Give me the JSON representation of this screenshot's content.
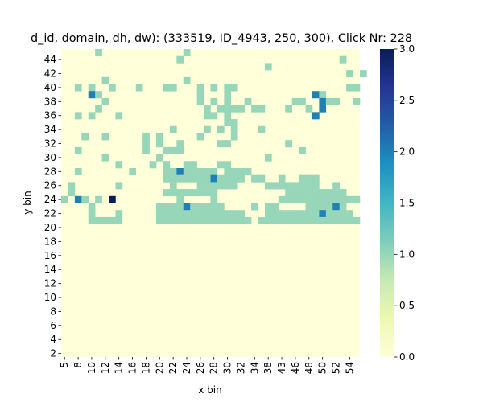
{
  "chart_data": {
    "type": "heatmap",
    "title": "d_id, domain, dh, dw): (333519, ID_4943, 250, 300), Click Nr: 228",
    "xlabel": "x bin",
    "ylabel": "y bin",
    "x_tick_labels": [
      "5",
      "8",
      "10",
      "12",
      "14",
      "16",
      "18",
      "20",
      "22",
      "24",
      "26",
      "28",
      "30",
      "32",
      "34",
      "38",
      "43",
      "46",
      "48",
      "50",
      "52",
      "54"
    ],
    "x_tick_columns": [
      0,
      2,
      4,
      6,
      8,
      10,
      12,
      14,
      16,
      18,
      20,
      22,
      24,
      26,
      28,
      30,
      32,
      34,
      36,
      38,
      40,
      42
    ],
    "y_tick_labels": [
      "2",
      "4",
      "6",
      "8",
      "10",
      "12",
      "14",
      "16",
      "18",
      "20",
      "22",
      "24",
      "26",
      "28",
      "30",
      "32",
      "34",
      "36",
      "38",
      "40",
      "42",
      "44"
    ],
    "y_tick_rows": [
      43,
      41,
      39,
      37,
      35,
      33,
      31,
      29,
      27,
      25,
      23,
      21,
      19,
      17,
      15,
      13,
      11,
      9,
      7,
      5,
      3,
      1
    ],
    "n_cols": 44,
    "n_rows": 44,
    "colorbar": {
      "min": 0.0,
      "max": 3.0,
      "ticks": [
        "0.0",
        "0.5",
        "1.0",
        "1.5",
        "2.0",
        "2.5",
        "3.0"
      ]
    },
    "colormap": "YlGnBu",
    "nonzero_cells": [
      [
        5,
        0,
        1
      ],
      [
        18,
        0,
        1
      ],
      [
        17,
        1,
        1
      ],
      [
        41,
        1,
        1
      ],
      [
        30,
        2,
        1
      ],
      [
        42,
        3,
        1
      ],
      [
        44,
        3,
        1
      ],
      [
        6,
        4,
        1
      ],
      [
        18,
        4,
        1
      ],
      [
        2,
        5,
        1
      ],
      [
        4,
        5,
        1
      ],
      [
        7,
        5,
        1
      ],
      [
        11,
        5,
        1
      ],
      [
        15,
        5,
        1
      ],
      [
        16,
        5,
        1
      ],
      [
        20,
        5,
        1
      ],
      [
        22,
        5,
        1
      ],
      [
        24,
        5,
        1
      ],
      [
        25,
        5,
        1
      ],
      [
        42,
        5,
        1
      ],
      [
        43,
        5,
        1
      ],
      [
        4,
        6,
        2
      ],
      [
        5,
        6,
        1
      ],
      [
        20,
        6,
        1
      ],
      [
        24,
        6,
        1
      ],
      [
        37,
        6,
        2
      ],
      [
        38,
        6,
        1
      ],
      [
        6,
        7,
        1
      ],
      [
        20,
        7,
        1
      ],
      [
        22,
        7,
        1
      ],
      [
        24,
        7,
        1
      ],
      [
        27,
        7,
        1
      ],
      [
        34,
        7,
        1
      ],
      [
        35,
        7,
        1
      ],
      [
        38,
        7,
        2
      ],
      [
        39,
        7,
        1
      ],
      [
        40,
        7,
        1
      ],
      [
        43,
        7,
        1
      ],
      [
        5,
        8,
        1
      ],
      [
        21,
        8,
        1
      ],
      [
        23,
        8,
        1
      ],
      [
        24,
        8,
        1
      ],
      [
        25,
        8,
        1
      ],
      [
        26,
        8,
        1
      ],
      [
        28,
        8,
        1
      ],
      [
        29,
        8,
        1
      ],
      [
        33,
        8,
        1
      ],
      [
        36,
        8,
        1
      ],
      [
        38,
        8,
        2
      ],
      [
        2,
        9,
        1
      ],
      [
        4,
        9,
        1
      ],
      [
        8,
        9,
        1
      ],
      [
        21,
        9,
        1
      ],
      [
        22,
        9,
        1
      ],
      [
        24,
        9,
        1
      ],
      [
        37,
        9,
        2
      ],
      [
        24,
        10,
        1
      ],
      [
        25,
        10,
        1
      ],
      [
        16,
        11,
        1
      ],
      [
        21,
        11,
        1
      ],
      [
        23,
        11,
        1
      ],
      [
        25,
        11,
        1
      ],
      [
        29,
        11,
        1
      ],
      [
        3,
        12,
        1
      ],
      [
        6,
        12,
        1
      ],
      [
        12,
        12,
        1
      ],
      [
        14,
        12,
        1
      ],
      [
        20,
        12,
        1
      ],
      [
        25,
        12,
        1
      ],
      [
        12,
        13,
        1
      ],
      [
        14,
        13,
        1
      ],
      [
        17,
        13,
        1
      ],
      [
        23,
        13,
        1
      ],
      [
        24,
        13,
        1
      ],
      [
        33,
        13,
        1
      ],
      [
        2,
        14,
        1
      ],
      [
        12,
        14,
        1
      ],
      [
        15,
        14,
        1
      ],
      [
        16,
        14,
        1
      ],
      [
        17,
        14,
        1
      ],
      [
        35,
        14,
        1
      ],
      [
        6,
        15,
        1
      ],
      [
        14,
        15,
        1
      ],
      [
        30,
        15,
        1
      ],
      [
        8,
        16,
        1
      ],
      [
        13,
        16,
        1
      ],
      [
        15,
        16,
        1
      ],
      [
        18,
        16,
        1
      ],
      [
        19,
        16,
        1
      ],
      [
        23,
        16,
        1
      ],
      [
        24,
        16,
        1
      ],
      [
        2,
        17,
        1
      ],
      [
        10,
        17,
        1
      ],
      [
        15,
        17,
        1
      ],
      [
        16,
        17,
        1
      ],
      [
        17,
        17,
        2
      ],
      [
        18,
        17,
        1
      ],
      [
        19,
        17,
        1
      ],
      [
        20,
        17,
        1
      ],
      [
        21,
        17,
        1
      ],
      [
        22,
        17,
        1
      ],
      [
        24,
        17,
        1
      ],
      [
        25,
        17,
        1
      ],
      [
        26,
        17,
        1
      ],
      [
        27,
        17,
        1
      ],
      [
        15,
        18,
        1
      ],
      [
        16,
        18,
        1
      ],
      [
        17,
        18,
        1
      ],
      [
        18,
        18,
        1
      ],
      [
        19,
        18,
        1
      ],
      [
        20,
        18,
        1
      ],
      [
        21,
        18,
        1
      ],
      [
        22,
        18,
        2
      ],
      [
        23,
        18,
        1
      ],
      [
        24,
        18,
        1
      ],
      [
        25,
        18,
        1
      ],
      [
        26,
        18,
        1
      ],
      [
        28,
        18,
        1
      ],
      [
        29,
        18,
        1
      ],
      [
        32,
        18,
        1
      ],
      [
        35,
        18,
        1
      ],
      [
        36,
        18,
        1
      ],
      [
        37,
        18,
        1
      ],
      [
        1,
        19,
        1
      ],
      [
        8,
        19,
        1
      ],
      [
        16,
        19,
        1
      ],
      [
        20,
        19,
        1
      ],
      [
        21,
        19,
        1
      ],
      [
        22,
        19,
        1
      ],
      [
        23,
        19,
        1
      ],
      [
        24,
        19,
        1
      ],
      [
        25,
        19,
        1
      ],
      [
        30,
        19,
        1
      ],
      [
        31,
        19,
        1
      ],
      [
        32,
        19,
        1
      ],
      [
        33,
        19,
        1
      ],
      [
        34,
        19,
        1
      ],
      [
        35,
        19,
        1
      ],
      [
        36,
        19,
        1
      ],
      [
        37,
        19,
        1
      ],
      [
        40,
        19,
        1
      ],
      [
        1,
        20,
        1
      ],
      [
        15,
        20,
        1
      ],
      [
        16,
        20,
        1
      ],
      [
        17,
        20,
        1
      ],
      [
        18,
        20,
        1
      ],
      [
        19,
        20,
        1
      ],
      [
        20,
        20,
        1
      ],
      [
        21,
        20,
        1
      ],
      [
        22,
        20,
        1
      ],
      [
        33,
        20,
        1
      ],
      [
        34,
        20,
        1
      ],
      [
        35,
        20,
        1
      ],
      [
        36,
        20,
        1
      ],
      [
        37,
        20,
        1
      ],
      [
        38,
        20,
        1
      ],
      [
        39,
        20,
        1
      ],
      [
        40,
        20,
        1
      ],
      [
        41,
        20,
        1
      ],
      [
        0,
        21,
        1
      ],
      [
        2,
        21,
        2
      ],
      [
        3,
        21,
        1
      ],
      [
        5,
        21,
        1
      ],
      [
        7,
        21,
        3
      ],
      [
        17,
        21,
        1
      ],
      [
        22,
        21,
        1
      ],
      [
        32,
        21,
        1
      ],
      [
        33,
        21,
        1
      ],
      [
        34,
        21,
        1
      ],
      [
        35,
        21,
        1
      ],
      [
        36,
        21,
        1
      ],
      [
        37,
        21,
        1
      ],
      [
        38,
        21,
        1
      ],
      [
        39,
        21,
        1
      ],
      [
        40,
        21,
        1
      ],
      [
        41,
        21,
        1
      ],
      [
        42,
        21,
        1
      ],
      [
        43,
        21,
        1
      ],
      [
        4,
        22,
        1
      ],
      [
        14,
        22,
        1
      ],
      [
        15,
        22,
        1
      ],
      [
        16,
        22,
        1
      ],
      [
        17,
        22,
        1
      ],
      [
        18,
        22,
        2
      ],
      [
        19,
        22,
        1
      ],
      [
        20,
        22,
        1
      ],
      [
        21,
        22,
        1
      ],
      [
        22,
        22,
        1
      ],
      [
        23,
        22,
        1
      ],
      [
        28,
        22,
        1
      ],
      [
        30,
        22,
        1
      ],
      [
        31,
        22,
        1
      ],
      [
        36,
        22,
        1
      ],
      [
        37,
        22,
        1
      ],
      [
        38,
        22,
        1
      ],
      [
        39,
        22,
        1
      ],
      [
        40,
        22,
        2
      ],
      [
        41,
        22,
        1
      ],
      [
        4,
        23,
        1
      ],
      [
        8,
        23,
        1
      ],
      [
        14,
        23,
        1
      ],
      [
        15,
        23,
        1
      ],
      [
        16,
        23,
        1
      ],
      [
        17,
        23,
        1
      ],
      [
        18,
        23,
        1
      ],
      [
        19,
        23,
        1
      ],
      [
        20,
        23,
        1
      ],
      [
        21,
        23,
        1
      ],
      [
        22,
        23,
        1
      ],
      [
        23,
        23,
        1
      ],
      [
        24,
        23,
        1
      ],
      [
        25,
        23,
        1
      ],
      [
        26,
        23,
        1
      ],
      [
        30,
        23,
        1
      ],
      [
        31,
        23,
        1
      ],
      [
        32,
        23,
        1
      ],
      [
        33,
        23,
        1
      ],
      [
        34,
        23,
        1
      ],
      [
        35,
        23,
        1
      ],
      [
        36,
        23,
        1
      ],
      [
        37,
        23,
        1
      ],
      [
        38,
        23,
        2
      ],
      [
        39,
        23,
        1
      ],
      [
        40,
        23,
        1
      ],
      [
        41,
        23,
        1
      ],
      [
        42,
        23,
        1
      ],
      [
        4,
        24,
        1
      ],
      [
        5,
        24,
        1
      ],
      [
        6,
        24,
        1
      ],
      [
        7,
        24,
        1
      ],
      [
        8,
        24,
        1
      ],
      [
        14,
        24,
        1
      ],
      [
        15,
        24,
        1
      ],
      [
        16,
        24,
        1
      ],
      [
        17,
        24,
        1
      ],
      [
        18,
        24,
        1
      ],
      [
        19,
        24,
        1
      ],
      [
        20,
        24,
        1
      ],
      [
        21,
        24,
        1
      ],
      [
        22,
        24,
        1
      ],
      [
        23,
        24,
        1
      ],
      [
        24,
        24,
        1
      ],
      [
        25,
        24,
        1
      ],
      [
        26,
        24,
        1
      ],
      [
        27,
        24,
        1
      ],
      [
        29,
        24,
        1
      ],
      [
        30,
        24,
        1
      ],
      [
        31,
        24,
        1
      ],
      [
        32,
        24,
        1
      ],
      [
        33,
        24,
        1
      ],
      [
        34,
        24,
        1
      ],
      [
        35,
        24,
        1
      ],
      [
        36,
        24,
        1
      ],
      [
        37,
        24,
        1
      ],
      [
        38,
        24,
        1
      ],
      [
        39,
        24,
        1
      ],
      [
        40,
        24,
        1
      ],
      [
        41,
        24,
        1
      ],
      [
        42,
        24,
        1
      ],
      [
        43,
        24,
        1
      ]
    ]
  }
}
